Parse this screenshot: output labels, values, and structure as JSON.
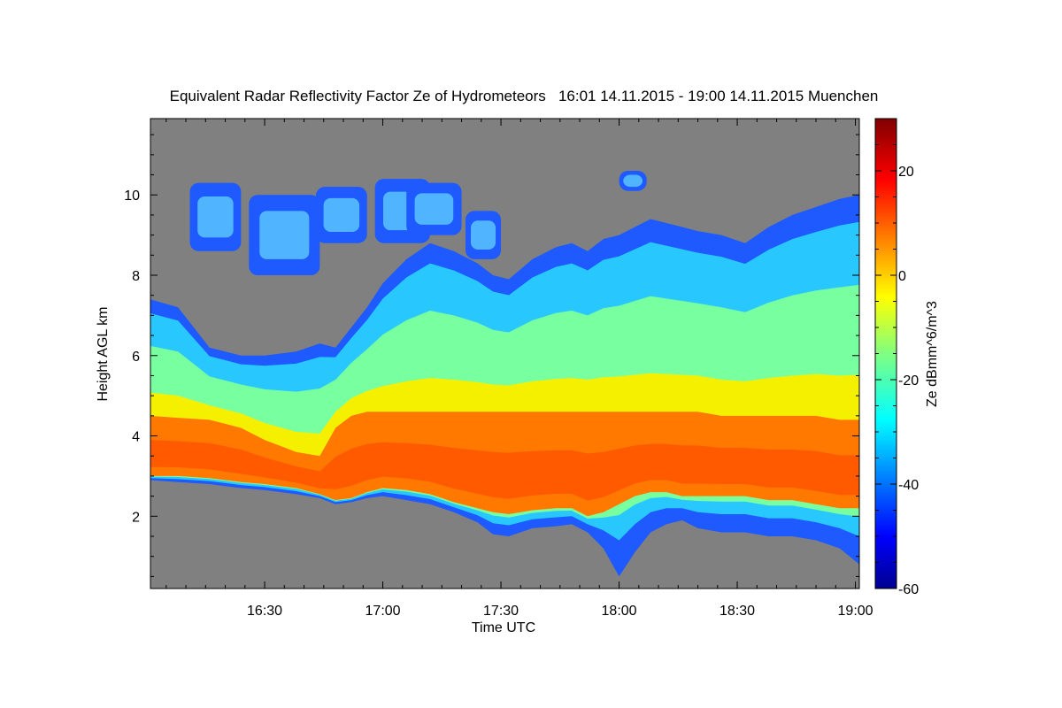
{
  "chart_data": {
    "type": "heatmap",
    "title": "Equivalent Radar Reflectivity Factor Ze of Hydrometeors   16:01 14.11.2015 - 19:00 14.11.2015 Muenchen",
    "xlabel": "Time UTC",
    "ylabel": "Height AGL km",
    "colorbar_label": "Ze dBmm^6/m^3",
    "x_range_minutes_after_1600": [
      1,
      181
    ],
    "x_ticks": [
      {
        "label": "16:30",
        "minute": 30
      },
      {
        "label": "17:00",
        "minute": 60
      },
      {
        "label": "17:30",
        "minute": 90
      },
      {
        "label": "18:00",
        "minute": 120
      },
      {
        "label": "18:30",
        "minute": 150
      },
      {
        "label": "19:00",
        "minute": 180
      }
    ],
    "y_range_km": [
      0.2,
      11.9
    ],
    "y_ticks": [
      2,
      4,
      6,
      8,
      10
    ],
    "colorbar_range": [
      -60,
      30
    ],
    "colorbar_ticks": [
      20,
      0,
      -20,
      -40,
      -60
    ],
    "colormap": "jet",
    "background_color": "#808080",
    "profile_minute": [
      1,
      8,
      16,
      24,
      30,
      38,
      44,
      48,
      52,
      56,
      60,
      66,
      72,
      78,
      84,
      88,
      92,
      98,
      104,
      108,
      112,
      116,
      120,
      124,
      128,
      132,
      136,
      140,
      146,
      152,
      158,
      164,
      170,
      176,
      181
    ],
    "echo_base_km": [
      2.9,
      2.85,
      2.8,
      2.7,
      2.65,
      2.55,
      2.45,
      2.3,
      2.35,
      2.45,
      2.5,
      2.4,
      2.3,
      2.1,
      1.85,
      1.55,
      1.5,
      1.7,
      1.75,
      1.8,
      1.6,
      1.2,
      0.5,
      1.1,
      1.6,
      1.8,
      1.9,
      1.7,
      1.6,
      1.6,
      1.5,
      1.5,
      1.4,
      1.2,
      0.8
    ],
    "bright_band_base_km": [
      3.0,
      3.0,
      2.95,
      2.85,
      2.8,
      2.7,
      2.55,
      2.4,
      2.45,
      2.6,
      2.7,
      2.65,
      2.55,
      2.35,
      2.2,
      2.1,
      2.05,
      2.15,
      2.2,
      2.2,
      2.0,
      2.1,
      2.3,
      2.5,
      2.6,
      2.6,
      2.5,
      2.5,
      2.5,
      2.5,
      2.4,
      2.4,
      2.3,
      2.2,
      2.2
    ],
    "bright_band_top_km": [
      4.5,
      4.45,
      4.4,
      4.2,
      3.9,
      3.6,
      3.5,
      4.2,
      4.5,
      4.6,
      4.6,
      4.6,
      4.6,
      4.6,
      4.6,
      4.6,
      4.6,
      4.6,
      4.6,
      4.6,
      4.6,
      4.6,
      4.6,
      4.6,
      4.6,
      4.6,
      4.6,
      4.6,
      4.5,
      4.5,
      4.5,
      4.5,
      4.5,
      4.4,
      4.4
    ],
    "cloud_top_km": [
      7.4,
      7.2,
      6.2,
      6.0,
      6.0,
      6.1,
      6.3,
      6.2,
      6.7,
      7.2,
      7.8,
      8.4,
      8.8,
      8.6,
      8.3,
      8.0,
      7.9,
      8.4,
      8.7,
      8.8,
      8.6,
      8.9,
      9.0,
      9.2,
      9.4,
      9.3,
      9.2,
      9.1,
      9.0,
      8.8,
      9.2,
      9.5,
      9.7,
      9.9,
      10.0
    ],
    "upper_cloud_patches": [
      {
        "start_minute": 11,
        "end_minute": 24,
        "base_km": 8.6,
        "top_km": 10.3
      },
      {
        "start_minute": 26,
        "end_minute": 44,
        "base_km": 8.0,
        "top_km": 10.0
      },
      {
        "start_minute": 43,
        "end_minute": 56,
        "base_km": 8.8,
        "top_km": 10.2
      },
      {
        "start_minute": 58,
        "end_minute": 72,
        "base_km": 8.8,
        "top_km": 10.4
      },
      {
        "start_minute": 66,
        "end_minute": 80,
        "base_km": 9.0,
        "top_km": 10.3
      },
      {
        "start_minute": 81,
        "end_minute": 90,
        "base_km": 8.4,
        "top_km": 9.6
      },
      {
        "start_minute": 120,
        "end_minute": 127,
        "base_km": 10.1,
        "top_km": 10.6
      }
    ]
  }
}
